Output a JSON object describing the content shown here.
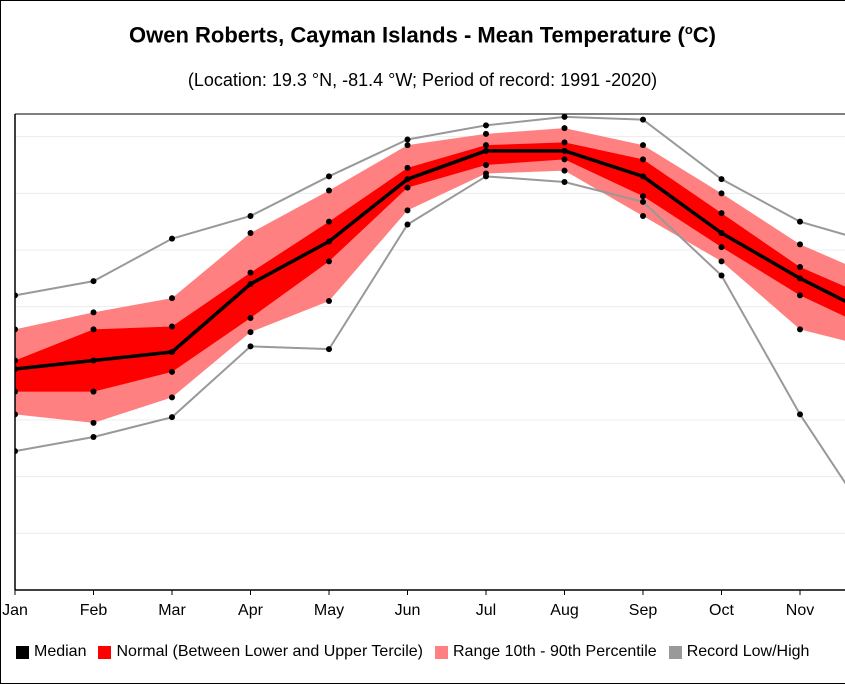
{
  "title": {
    "main": "Owen Roberts, Cayman Islands - Mean Temperature (",
    "sup": "o",
    "tail": "C)"
  },
  "subtitle": "(Location: 19.3 °N, -81.4 °W; Period of record: 1991 -2020)",
  "colors": {
    "median": "#000000",
    "normal": "#ff0000",
    "range": "#ff8080",
    "record": "#999999",
    "grid": "#ececec"
  },
  "legend": [
    {
      "label": "Median",
      "color": "#000000"
    },
    {
      "label": "Normal (Between Lower and Upper Tercile)",
      "color": "#ff0000"
    },
    {
      "label": "Range 10th - 90th Percentile",
      "color": "#ff8080"
    },
    {
      "label": "Record Low/High",
      "color": "#999999"
    }
  ],
  "chart_data": {
    "type": "area",
    "categories": [
      "Jan",
      "Feb",
      "Mar",
      "Apr",
      "May",
      "Jun",
      "Jul",
      "Aug",
      "Sep",
      "Oct",
      "Nov"
    ],
    "ylim": [
      22.0,
      30.4
    ],
    "grid": true,
    "y_tick_labels_visible": false,
    "series": [
      {
        "name": "Record Low/High",
        "role": "record_high",
        "values": [
          27.2,
          27.45,
          28.2,
          28.6,
          29.3,
          29.95,
          30.2,
          30.35,
          30.3,
          29.25,
          28.5
        ]
      },
      {
        "name": "Range 10th - 90th Percentile",
        "role": "p90",
        "values": [
          26.6,
          26.9,
          27.15,
          28.3,
          29.05,
          29.85,
          30.05,
          30.15,
          29.85,
          29.0,
          28.1
        ]
      },
      {
        "name": "Normal (Between Lower and Upper Tercile)",
        "role": "upper_tercile",
        "values": [
          26.05,
          26.6,
          26.65,
          27.6,
          28.5,
          29.45,
          29.85,
          29.9,
          29.6,
          28.65,
          27.7
        ]
      },
      {
        "name": "Median",
        "role": "median",
        "values": [
          25.9,
          26.05,
          26.2,
          27.4,
          28.15,
          29.25,
          29.75,
          29.75,
          29.3,
          28.3,
          27.5
        ]
      },
      {
        "name": "Normal (Between Lower and Upper Tercile)",
        "role": "lower_tercile",
        "values": [
          25.5,
          25.5,
          25.85,
          26.8,
          27.8,
          29.1,
          29.5,
          29.6,
          28.95,
          28.05,
          27.2
        ]
      },
      {
        "name": "Range 10th - 90th Percentile",
        "role": "p10",
        "values": [
          25.1,
          24.95,
          25.4,
          26.55,
          27.1,
          28.7,
          29.35,
          29.4,
          28.6,
          27.8,
          26.6
        ]
      },
      {
        "name": "Record Low/High",
        "role": "record_low",
        "values": [
          24.45,
          24.7,
          25.05,
          26.3,
          26.25,
          28.45,
          29.3,
          29.2,
          28.85,
          27.55,
          25.1
        ]
      }
    ],
    "partial_next_month": {
      "record_high": 28.1,
      "p90": 27.5,
      "upper_tercile": 27.1,
      "median": 26.8,
      "lower_tercile": 26.55,
      "p10": 26.25,
      "record_low": 23.0
    }
  }
}
